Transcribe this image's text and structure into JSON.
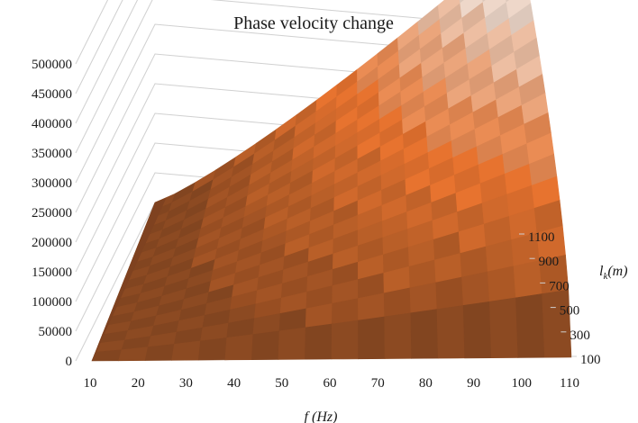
{
  "chart_data": {
    "type": "surface",
    "title": "Phase  velocity  change",
    "xlabel": "f (Hz)",
    "ylabel": "",
    "zlabel_main": "l",
    "zlabel_sub": "k",
    "zlabel_unit": "(m)",
    "x": [
      10,
      20,
      30,
      40,
      50,
      60,
      70,
      80,
      90,
      100,
      110
    ],
    "depth": [
      100,
      300,
      500,
      700,
      900,
      1100
    ],
    "y_ticks": [
      0,
      50000,
      100000,
      150000,
      200000,
      250000,
      300000,
      350000,
      400000,
      450000,
      500000
    ],
    "y_tick_labels": [
      "0",
      "50000",
      "100000",
      "150000",
      "200000",
      "250000",
      "300000",
      "350000",
      "400000",
      "450000",
      "500000"
    ],
    "x_tick_labels": [
      "10",
      "20",
      "30",
      "40",
      "50",
      "60",
      "70",
      "80",
      "90",
      "100",
      "110"
    ],
    "depth_tick_labels": [
      "100",
      "300",
      "500",
      "700",
      "900",
      "1100"
    ],
    "ylim": [
      0,
      500000
    ],
    "grid": true,
    "legend": "none",
    "band_step": 50000,
    "colors": {
      "low": "#8c4a22",
      "mid": "#e8742f",
      "high": "#f0f0f0",
      "grid": "#d0d0d0",
      "text": "#1a1a1a"
    }
  }
}
